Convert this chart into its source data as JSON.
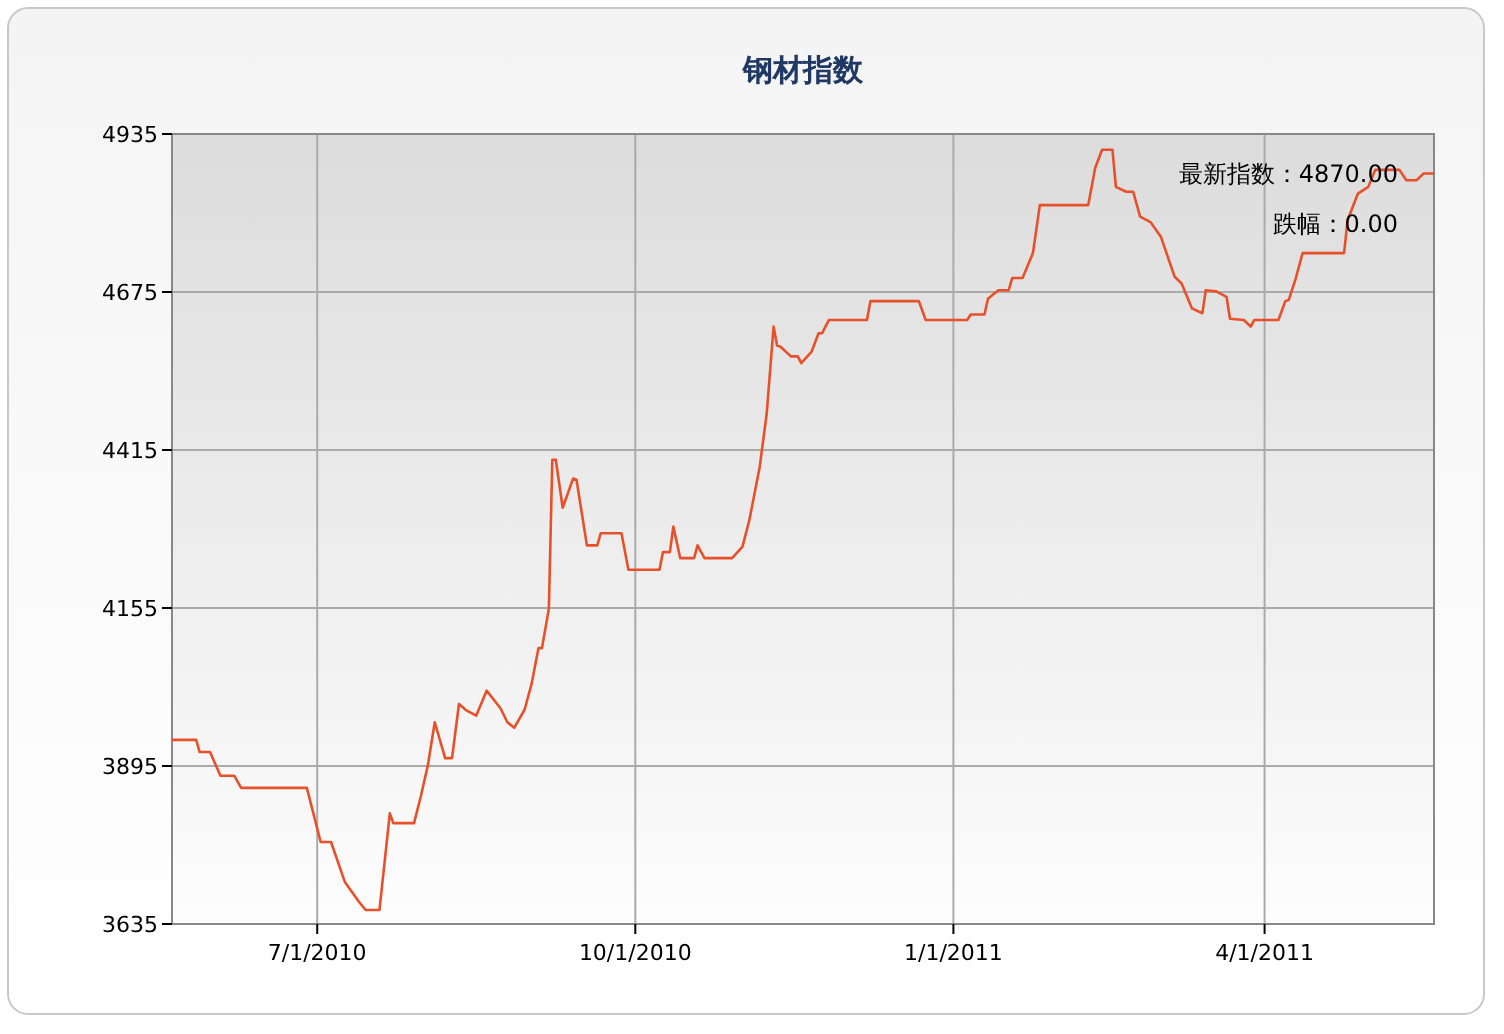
{
  "chart_data": {
    "type": "line",
    "title": "钢材指数",
    "x": [
      "2010-05-20",
      "2010-05-27",
      "2010-05-28",
      "2010-05-31",
      "2010-06-03",
      "2010-06-07",
      "2010-06-09",
      "2010-06-28",
      "2010-07-02",
      "2010-07-05",
      "2010-07-09",
      "2010-07-13",
      "2010-07-15",
      "2010-07-19",
      "2010-07-22",
      "2010-07-23",
      "2010-07-29",
      "2010-07-31",
      "2010-08-02",
      "2010-08-04",
      "2010-08-07",
      "2010-08-09",
      "2010-08-11",
      "2010-08-13",
      "2010-08-16",
      "2010-08-19",
      "2010-08-23",
      "2010-08-25",
      "2010-08-27",
      "2010-08-30",
      "2010-09-01",
      "2010-09-03",
      "2010-09-04",
      "2010-09-06",
      "2010-09-07",
      "2010-09-08",
      "2010-09-10",
      "2010-09-13",
      "2010-09-14",
      "2010-09-17",
      "2010-09-20",
      "2010-09-21",
      "2010-09-27",
      "2010-09-29",
      "2010-10-08",
      "2010-10-09",
      "2010-10-11",
      "2010-10-12",
      "2010-10-14",
      "2010-10-18",
      "2010-10-19",
      "2010-10-21",
      "2010-10-29",
      "2010-11-01",
      "2010-11-03",
      "2010-11-06",
      "2010-11-08",
      "2010-11-10",
      "2010-11-11",
      "2010-11-12",
      "2010-11-15",
      "2010-11-17",
      "2010-11-18",
      "2010-11-21",
      "2010-11-23",
      "2010-11-24",
      "2010-11-26",
      "2010-12-07",
      "2010-12-08",
      "2010-12-22",
      "2010-12-24",
      "2011-01-05",
      "2011-01-06",
      "2011-01-10",
      "2011-01-11",
      "2011-01-14",
      "2011-01-17",
      "2011-01-18",
      "2011-01-21",
      "2011-01-24",
      "2011-01-26",
      "2011-02-09",
      "2011-02-11",
      "2011-02-13",
      "2011-02-16",
      "2011-02-17",
      "2011-02-20",
      "2011-02-22",
      "2011-02-24",
      "2011-02-27",
      "2011-03-02",
      "2011-03-06",
      "2011-03-08",
      "2011-03-11",
      "2011-03-14",
      "2011-03-15",
      "2011-03-18",
      "2011-03-21",
      "2011-03-22",
      "2011-03-26",
      "2011-03-28",
      "2011-03-29",
      "2011-04-05",
      "2011-04-07",
      "2011-04-08",
      "2011-04-10",
      "2011-04-12",
      "2011-04-24",
      "2011-04-25",
      "2011-04-28",
      "2011-05-01",
      "2011-05-03",
      "2011-05-10",
      "2011-05-12",
      "2011-05-15",
      "2011-05-17",
      "2011-05-20"
    ],
    "series": [
      {
        "color": "#e8502a",
        "values": [
          3938,
          3938,
          3918,
          3918,
          3879,
          3879,
          3859,
          3859,
          3770,
          3770,
          3704,
          3672,
          3658,
          3658,
          3817,
          3801,
          3801,
          3846,
          3896,
          3967,
          3908,
          3908,
          3997,
          3987,
          3978,
          4019,
          3990,
          3967,
          3958,
          3988,
          4030,
          4089,
          4089,
          4154,
          4399,
          4399,
          4320,
          4368,
          4366,
          4258,
          4258,
          4278,
          4278,
          4218,
          4218,
          4247,
          4247,
          4289,
          4237,
          4237,
          4258,
          4237,
          4237,
          4256,
          4300,
          4388,
          4475,
          4618,
          4587,
          4585,
          4569,
          4569,
          4558,
          4577,
          4607,
          4607,
          4629,
          4629,
          4660,
          4660,
          4629,
          4629,
          4638,
          4638,
          4664,
          4678,
          4678,
          4698,
          4698,
          4739,
          4818,
          4818,
          4879,
          4909,
          4909,
          4848,
          4840,
          4840,
          4799,
          4790,
          4766,
          4700,
          4689,
          4648,
          4640,
          4678,
          4676,
          4667,
          4631,
          4629,
          4618,
          4629,
          4629,
          4660,
          4662,
          4697,
          4739,
          4739,
          4793,
          4837,
          4848,
          4876,
          4876,
          4859,
          4859,
          4870,
          4870
        ]
      }
    ],
    "xlim": [
      "2010-05-20",
      "2011-05-20"
    ],
    "xticks": [
      {
        "value": "2010-07-01",
        "label": "7/1/2010"
      },
      {
        "value": "2010-10-01",
        "label": "10/1/2010"
      },
      {
        "value": "2011-01-01",
        "label": "1/1/2011"
      },
      {
        "value": "2011-04-01",
        "label": "4/1/2011"
      }
    ],
    "ylim": [
      3635,
      4935
    ],
    "yticks": [
      3635,
      3895,
      4155,
      4415,
      4675,
      4935
    ],
    "grid": true,
    "line_style": "solid",
    "annotations": [
      "最新指数：4870.00",
      "跌幅：0.00"
    ]
  }
}
